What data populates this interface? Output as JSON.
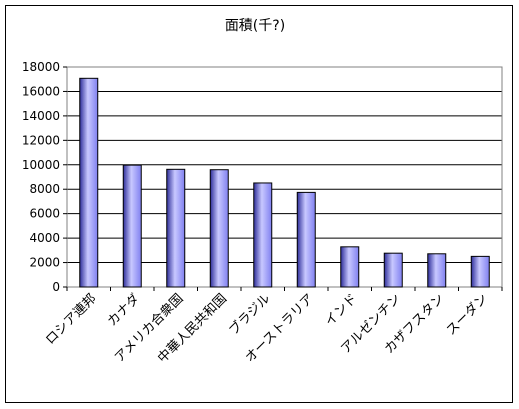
{
  "chart_data": {
    "type": "bar",
    "title": "面積(千?)",
    "xlabel": "",
    "ylabel": "",
    "categories": [
      "ロシア連邦",
      "カナダ",
      "アメリカ合衆国",
      "中華人民共和国",
      "ブラジル",
      "オーストラリア",
      "インド",
      "アルゼンチン",
      "カザフスタン",
      "スーダン"
    ],
    "values": [
      17075,
      9971,
      9629,
      9597,
      8512,
      7741,
      3287,
      2767,
      2717,
      2506
    ],
    "ylim": [
      0,
      18000
    ],
    "yticks": [
      0,
      2000,
      4000,
      6000,
      8000,
      10000,
      12000,
      14000,
      16000,
      18000
    ],
    "grid": true,
    "legend": "none",
    "bar_color": "#8080f0",
    "bar_dark": "#2e2e9a",
    "bar_light": "#c8c8ff"
  }
}
